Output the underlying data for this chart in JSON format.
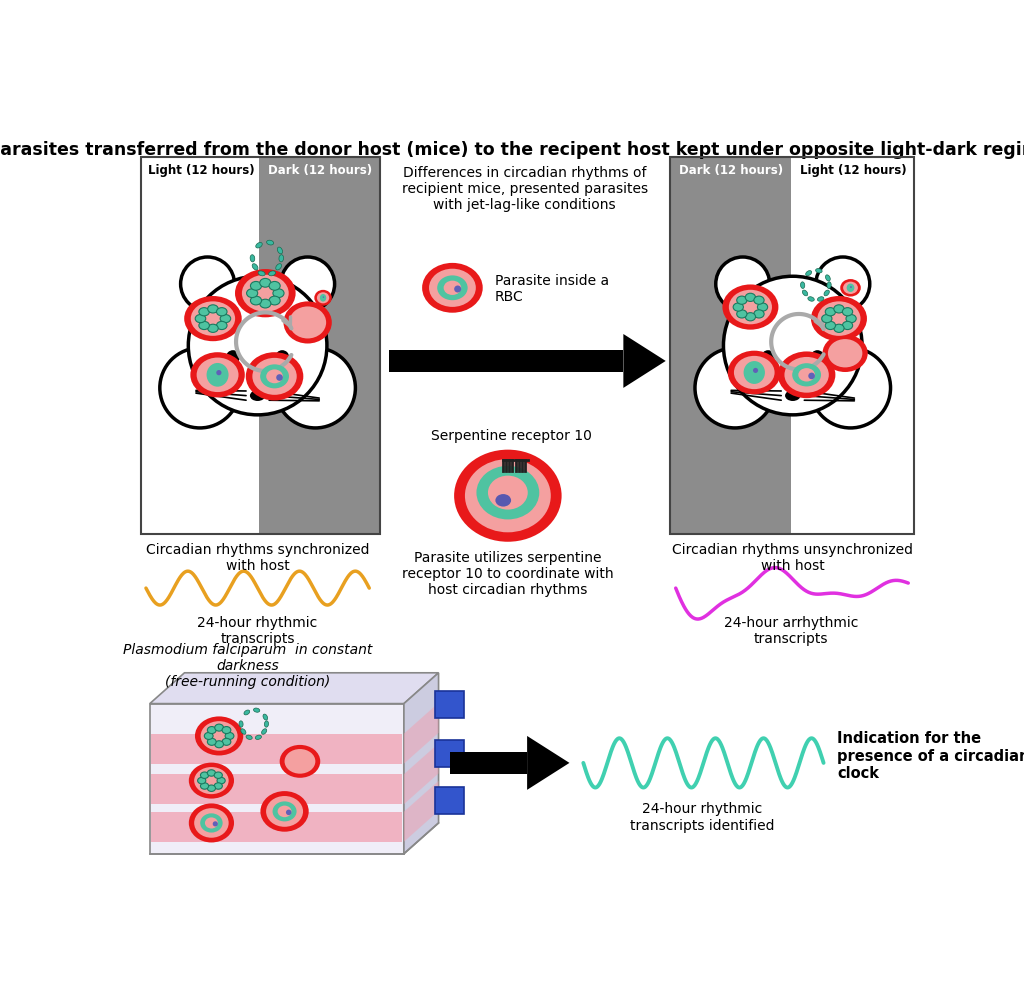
{
  "title": "Parasites transferred from the donor host (mice) to the recipent host kept under opposite light-dark regimes",
  "title_fontsize": 12.5,
  "background_color": "#ffffff",
  "dark_gray": "#8c8c8c",
  "rbc_red": "#e8191a",
  "rbc_pink": "#f4a0a0",
  "rbc_teal": "#4fc3a1",
  "parasite_teal": "#3ab8a0",
  "box_border": "#555555",
  "left_mouse_label": "Circadian rhythms synchronized\nwith host",
  "right_mouse_label": "Circadian rhythms unsynchronized\nwith host",
  "left_wave_label": "24-hour rhythmic\ntranscripts",
  "right_wave_label": "24-hour arrhythmic\ntranscripts",
  "bottom_label1": "Plasmodium falciparum  in constant\ndarkness\n(free-running condition)",
  "bottom_wave_label": "24-hour rhythmic\ntranscripts identified",
  "bottom_right_label": "Indication for the\npresence of a circadian\nclock",
  "middle_text1": "Differences in circadian rhythms of\nrecipient mice, presented parasites\nwith jet-lag-like conditions",
  "middle_text2": "Parasite inside a\nRBC",
  "middle_text3": "Serpentine receptor 10",
  "middle_text4": "Parasite utilizes serpentine\nreceptor 10 to coordinate with\nhost circadian rhythms",
  "left_light_label": "Light (12 hours)",
  "left_dark_label": "Dark (12 hours)",
  "right_dark_label": "Dark (12 hours)",
  "right_light_label": "Light (12 hours)",
  "wave_orange": "#e8a020",
  "wave_magenta": "#e030e0",
  "wave_teal": "#40d0b0"
}
